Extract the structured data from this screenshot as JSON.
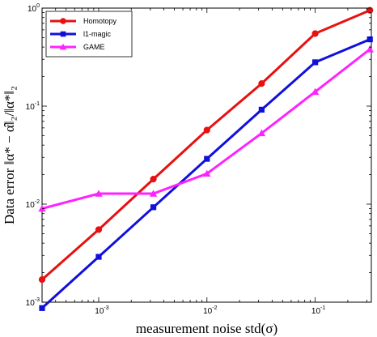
{
  "chart_data": {
    "type": "line",
    "title": "",
    "xlabel": "measurement noise std(σ)",
    "ylabel": "Data error ‖α* − α̂‖₂/‖α*‖₂",
    "xscale": "log",
    "yscale": "log",
    "xlim": [
      0.0003,
      0.33
    ],
    "ylim": [
      0.001,
      1
    ],
    "x_ticks": [
      {
        "value": 0.001,
        "base": "10",
        "exp": "-3"
      },
      {
        "value": 0.01,
        "base": "10",
        "exp": "-2"
      },
      {
        "value": 0.1,
        "base": "10",
        "exp": "-1"
      }
    ],
    "y_ticks": [
      {
        "value": 0.001,
        "base": "10",
        "exp": "-3"
      },
      {
        "value": 0.01,
        "base": "10",
        "exp": "-2"
      },
      {
        "value": 0.1,
        "base": "10",
        "exp": "-1"
      },
      {
        "value": 1,
        "base": "10",
        "exp": "0"
      }
    ],
    "grid": false,
    "legend_position": "top-left",
    "series": [
      {
        "name": "Homotopy",
        "color": "#e81010",
        "marker": "circle",
        "x": [
          0.0003,
          0.001,
          0.0032,
          0.01,
          0.032,
          0.1,
          0.32
        ],
        "y": [
          0.0017,
          0.0055,
          0.018,
          0.057,
          0.17,
          0.55,
          0.95
        ]
      },
      {
        "name": "l1-magic",
        "color": "#1010dd",
        "marker": "square",
        "x": [
          0.0003,
          0.001,
          0.0032,
          0.01,
          0.032,
          0.1,
          0.32
        ],
        "y": [
          0.00087,
          0.0029,
          0.0093,
          0.029,
          0.092,
          0.28,
          0.48
        ]
      },
      {
        "name": "GAME",
        "color": "#ff22ff",
        "marker": "triangle",
        "x": [
          0.0003,
          0.001,
          0.0032,
          0.01,
          0.032,
          0.1,
          0.32
        ],
        "y": [
          0.009,
          0.0128,
          0.0128,
          0.0205,
          0.053,
          0.14,
          0.38
        ]
      }
    ]
  }
}
